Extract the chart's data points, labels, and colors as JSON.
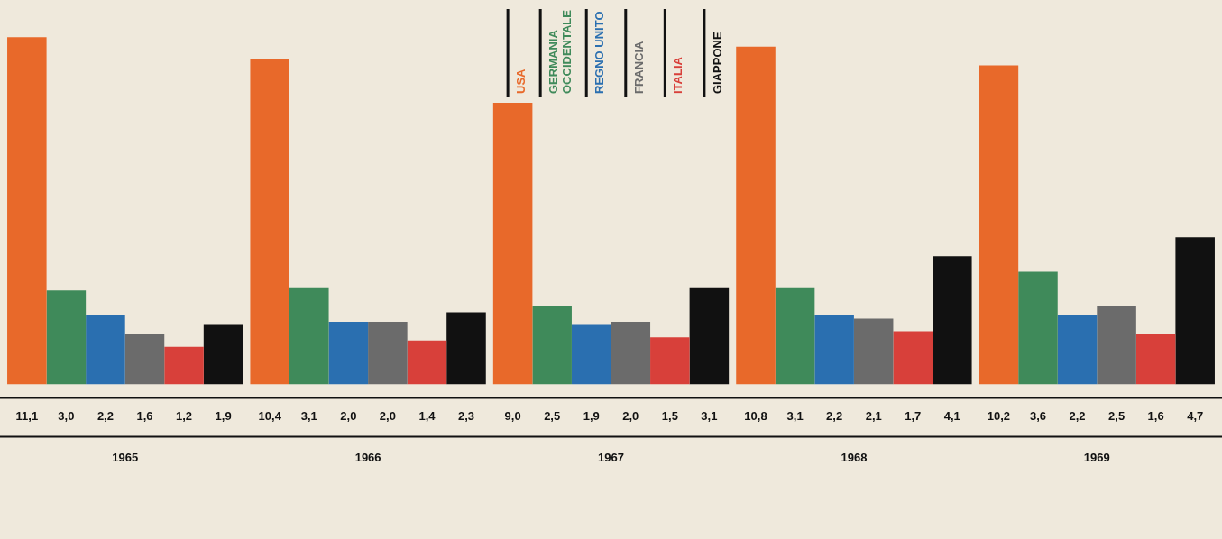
{
  "chart_data": {
    "type": "bar",
    "categories": [
      "1965",
      "1966",
      "1967",
      "1968",
      "1969"
    ],
    "series": [
      {
        "name": "USA",
        "color": "#e8692a",
        "values": [
          11.1,
          10.4,
          9.0,
          10.8,
          10.2
        ],
        "value_labels": [
          "11,1",
          "10,4",
          "9,0",
          "10,8",
          "10,2"
        ]
      },
      {
        "name": "GERMANIA OCCIDENTALE",
        "color": "#3f8a5a",
        "values": [
          3.0,
          3.1,
          2.5,
          3.1,
          3.6
        ],
        "value_labels": [
          "3,0",
          "3,1",
          "2,5",
          "3,1",
          "3,6"
        ]
      },
      {
        "name": "REGNO UNITO",
        "color": "#2a6fb0",
        "values": [
          2.2,
          2.0,
          1.9,
          2.2,
          2.2
        ],
        "value_labels": [
          "2,2",
          "2,0",
          "1,9",
          "2,2",
          "2,2"
        ]
      },
      {
        "name": "FRANCIA",
        "color": "#6b6b6b",
        "values": [
          1.6,
          2.0,
          2.0,
          2.1,
          2.5
        ],
        "value_labels": [
          "1,6",
          "2,0",
          "2,0",
          "2,1",
          "2,5"
        ]
      },
      {
        "name": "ITALIA",
        "color": "#d8403a",
        "values": [
          1.2,
          1.4,
          1.5,
          1.7,
          1.6
        ],
        "value_labels": [
          "1,2",
          "1,4",
          "1,5",
          "1,7",
          "1,6"
        ]
      },
      {
        "name": "GIAPPONE",
        "color": "#111111",
        "values": [
          1.9,
          2.3,
          3.1,
          4.1,
          4.7
        ],
        "value_labels": [
          "1,9",
          "2,3",
          "3,1",
          "4,1",
          "4,7"
        ]
      }
    ],
    "tick_labels": "x",
    "legend": "top"
  }
}
